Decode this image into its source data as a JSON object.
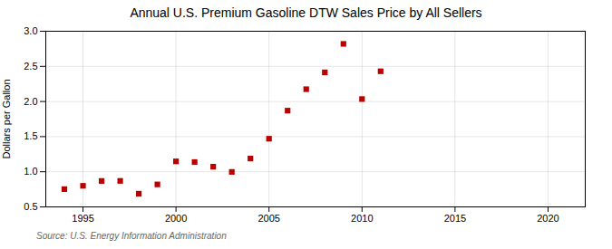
{
  "chart_data": {
    "type": "scatter",
    "title": "Annual U.S. Premium Gasoline DTW Sales Price by All Sellers",
    "ylabel": "Dollars per Gallon",
    "source": "Source: U.S. Energy Information Administration",
    "x": [
      1994,
      1995,
      1996,
      1997,
      1998,
      1999,
      2000,
      2001,
      2002,
      2003,
      2004,
      2005,
      2006,
      2007,
      2008,
      2009,
      2010,
      2011
    ],
    "values": [
      0.753,
      0.8,
      0.869,
      0.87,
      0.688,
      0.82,
      1.148,
      1.138,
      1.072,
      0.998,
      1.188,
      1.47,
      1.87,
      2.175,
      2.415,
      2.82,
      2.035,
      2.43
    ],
    "color": "#bb0000",
    "marker": "square",
    "xlim": [
      1993,
      2022
    ],
    "ylim": [
      0.5,
      3.0
    ],
    "xticks": [
      1995,
      2000,
      2005,
      2010,
      2015,
      2020
    ],
    "yticks": [
      0.5,
      {
        "value": 1.0,
        "label": "1.0"
      },
      1.5,
      {
        "value": 2.0,
        "label": "2.0"
      },
      2.5,
      {
        "value": 3.0,
        "label": "3.0"
      }
    ],
    "grid": true
  }
}
